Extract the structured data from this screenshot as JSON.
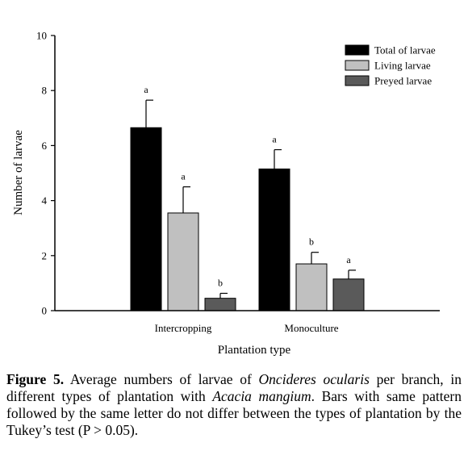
{
  "chart_data": {
    "type": "bar",
    "categories": [
      "Intercropping",
      "Monoculture"
    ],
    "series": [
      {
        "name": "Total of larvae",
        "color": "#000000",
        "values": [
          6.65,
          5.15
        ],
        "errors": [
          1.0,
          0.7
        ],
        "letters": [
          "a",
          "a"
        ]
      },
      {
        "name": "Living larvae",
        "color": "#c0c0c0",
        "values": [
          3.55,
          1.7
        ],
        "errors": [
          0.95,
          0.42
        ],
        "letters": [
          "a",
          "b"
        ]
      },
      {
        "name": "Preyed larvae",
        "color": "#5a5a5a",
        "values": [
          0.45,
          1.15
        ],
        "errors": [
          0.18,
          0.32
        ],
        "letters": [
          "b",
          "a"
        ]
      }
    ],
    "xlabel": "Plantation type",
    "ylabel": "Number of larvae",
    "ylim": [
      0,
      10
    ],
    "yticks": [
      0,
      2,
      4,
      6,
      8,
      10
    ],
    "legend_position": "top-right",
    "grid": false
  },
  "caption": {
    "label": "Figure 5.",
    "t1": " Average numbers of larvae of ",
    "species": "Oncideres ocularis",
    "t2": " per branch, in different types of plantation with ",
    "host": "Acacia mangium",
    "t3": ". Bars with same pattern followed by the same letter do not differ between the types of plantation by the Tukey’s test (P > 0.05)."
  }
}
